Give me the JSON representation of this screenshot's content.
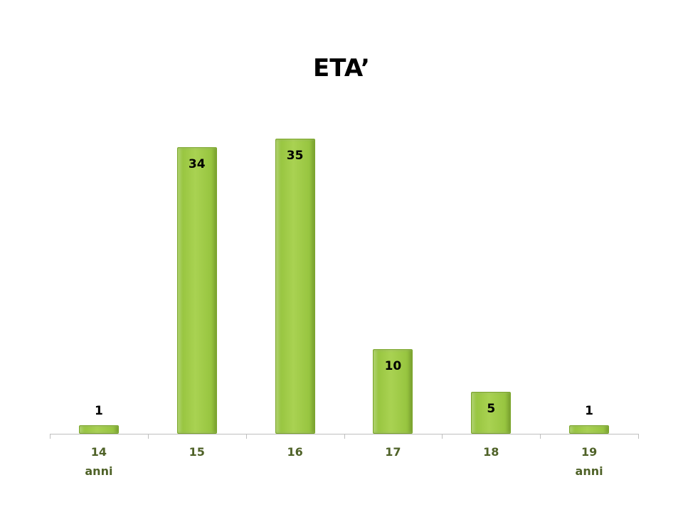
{
  "chart_data": {
    "type": "bar",
    "title": "ETA’",
    "categories": [
      "14 anni",
      "15",
      "16",
      "17",
      "18",
      "19 anni"
    ],
    "values": [
      1,
      34,
      35,
      10,
      5,
      1
    ],
    "color": "#92c13a"
  }
}
